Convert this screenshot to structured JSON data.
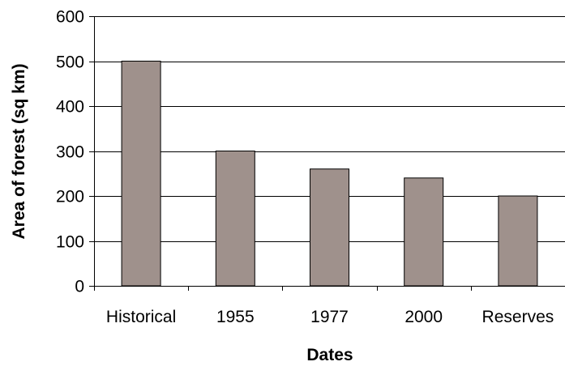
{
  "chart_data": {
    "type": "bar",
    "categories": [
      "Historical",
      "1955",
      "1977",
      "2000",
      "Reserves"
    ],
    "values": [
      500,
      300,
      260,
      240,
      200
    ],
    "title": "",
    "xlabel": "Dates",
    "ylabel": "Area of forest (sq km)",
    "ylim": [
      0,
      600
    ],
    "yticks": [
      0,
      100,
      200,
      300,
      400,
      500,
      600
    ],
    "grid": true,
    "legend": "none",
    "colors": {
      "bar_fill": "#9f918c",
      "bar_stroke": "#000000",
      "grid": "#000000",
      "axis": "#000000",
      "background": "#ffffff"
    }
  }
}
